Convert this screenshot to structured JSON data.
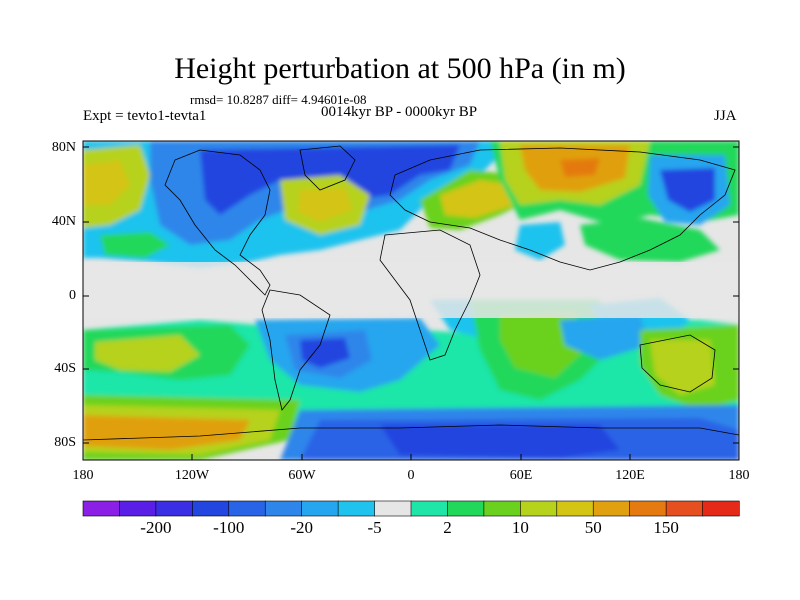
{
  "title": "Height perturbation at 500 hPa (in m)",
  "stats_text": "rmsd= 10.8287 diff= 4.94601e-08",
  "experiment_label": "Expt = tevto1-tevta1",
  "period_label": "0014kyr BP - 0000kyr BP",
  "season_label": "JJA",
  "lat_ticks": [
    "80N",
    "40N",
    "0",
    "40S",
    "80S"
  ],
  "lon_ticks": [
    "180",
    "120W",
    "60W",
    "0",
    "60E",
    "120E",
    "180"
  ],
  "colorbar": {
    "colors": [
      "#8b1fe6",
      "#5a1fe6",
      "#3b2fe6",
      "#2345e0",
      "#2a64e6",
      "#2f86ea",
      "#26a6ee",
      "#1fc3ee",
      "#e6e6e6",
      "#1fe6a8",
      "#22d85a",
      "#6ad21f",
      "#b6d21a",
      "#d4c414",
      "#e0a010",
      "#e47a10",
      "#e65020",
      "#e62a1a"
    ],
    "labels": [
      "-200",
      "-100",
      "-20",
      "-5",
      "2",
      "10",
      "50",
      "150"
    ],
    "label_after_box": [
      1,
      3,
      5,
      7,
      9,
      11,
      13,
      15
    ]
  },
  "map_background": "#e6e6e6"
}
